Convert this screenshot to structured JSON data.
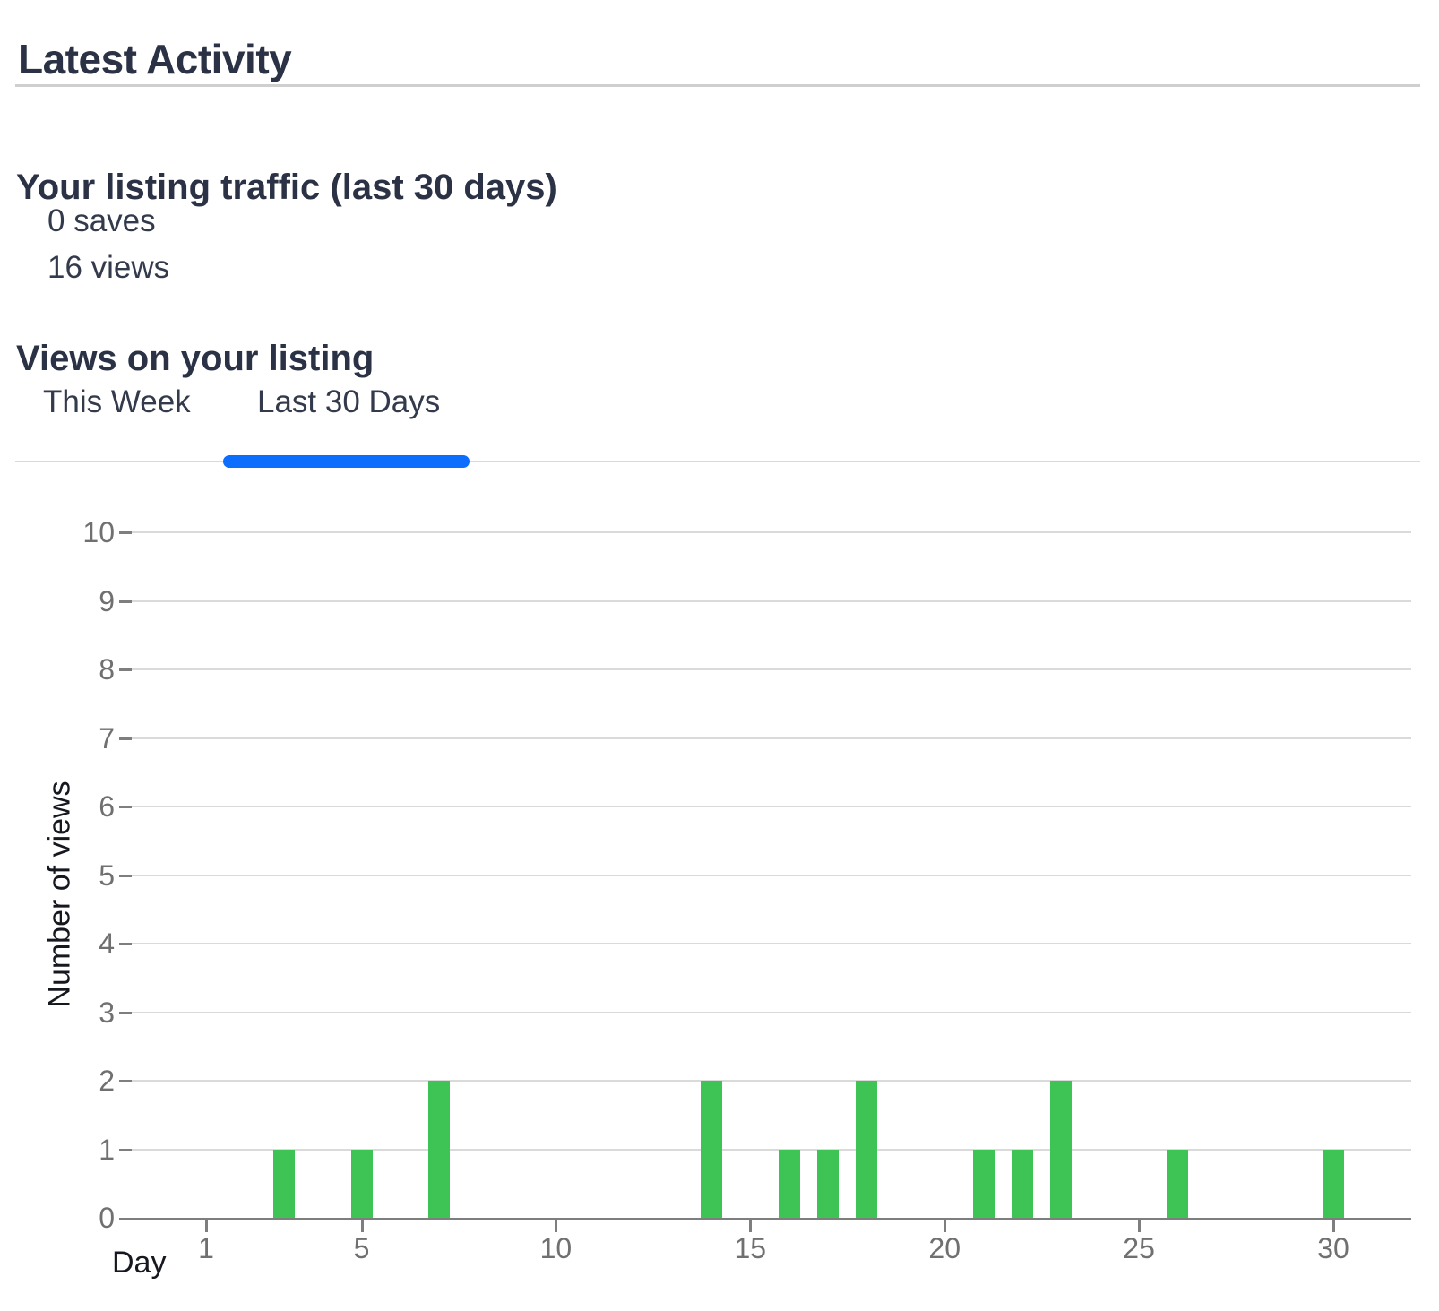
{
  "page": {
    "title": "Latest Activity"
  },
  "traffic": {
    "heading": "Your listing traffic (last 30 days)",
    "saves": "0 saves",
    "views": "16 views"
  },
  "views_section": {
    "heading": "Views on your listing",
    "tabs": [
      {
        "label": "This Week",
        "active": false
      },
      {
        "label": "Last 30 Days",
        "active": true
      }
    ]
  },
  "chart_data": {
    "type": "bar",
    "title": "",
    "xlabel": "Day",
    "ylabel": "Number of views",
    "categories": [
      1,
      2,
      3,
      4,
      5,
      6,
      7,
      8,
      9,
      10,
      11,
      12,
      13,
      14,
      15,
      16,
      17,
      18,
      19,
      20,
      21,
      22,
      23,
      24,
      25,
      26,
      27,
      28,
      29,
      30
    ],
    "values": [
      0,
      0,
      1,
      0,
      1,
      0,
      2,
      0,
      0,
      0,
      0,
      0,
      0,
      2,
      0,
      1,
      1,
      2,
      0,
      0,
      1,
      1,
      2,
      0,
      0,
      1,
      0,
      0,
      0,
      1
    ],
    "x_ticks": [
      1,
      5,
      10,
      15,
      20,
      25,
      30
    ],
    "y_ticks": [
      0,
      1,
      2,
      3,
      4,
      5,
      6,
      7,
      8,
      9,
      10
    ],
    "ylim": [
      0,
      10
    ],
    "grid": true,
    "legend_position": "none",
    "bar_color": "#3ec455"
  },
  "colors": {
    "accent_blue": "#0d6efd",
    "bar_green": "#3ec455",
    "heading_navy": "#2b3245",
    "tick_gray": "#707070",
    "grid_gray": "#dadada",
    "axis_gray": "#7e7e7e",
    "divider_gray": "#cfcfcf"
  }
}
